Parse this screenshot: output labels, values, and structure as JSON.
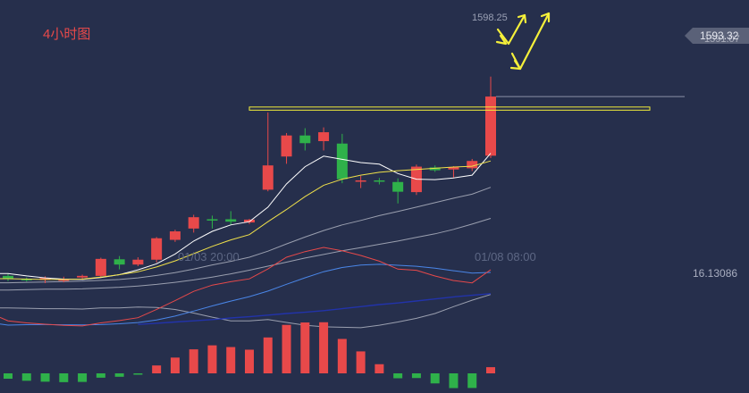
{
  "chart_data": {
    "type": "candlestick",
    "timeframe_label": "4小时图",
    "background": "#262f4c",
    "colors": {
      "up": "#e8494a",
      "down": "#2fb14a",
      "ma_white": "#ffffff",
      "ma_yellow": "#f0e14a",
      "ma_gray": "#b8bcc8",
      "ma_blue": "#2233aa",
      "dif": "#e8494a",
      "dea": "#4a86e8",
      "marker": "#f5f03a"
    },
    "price_axis": {
      "ylim": [
        1528,
        1600
      ],
      "current_price": "1593.32",
      "secondary_price": "1591.07",
      "high_label": "1598.25"
    },
    "x_ticks": [
      "01/03 20:00",
      "01/08 08:00"
    ],
    "macd_value_label": "16.13086",
    "candles": [
      {
        "o": 1549.0,
        "h": 1549.6,
        "l": 1547.7,
        "c": 1548.3
      },
      {
        "o": 1548.3,
        "h": 1548.6,
        "l": 1547.6,
        "c": 1547.9
      },
      {
        "o": 1548.0,
        "h": 1548.9,
        "l": 1547.2,
        "c": 1548.5
      },
      {
        "o": 1547.9,
        "h": 1548.8,
        "l": 1547.4,
        "c": 1548.1
      },
      {
        "o": 1548.6,
        "h": 1549.3,
        "l": 1548.2,
        "c": 1549.0
      },
      {
        "o": 1549.0,
        "h": 1553.5,
        "l": 1548.7,
        "c": 1553.2
      },
      {
        "o": 1553.1,
        "h": 1553.9,
        "l": 1550.6,
        "c": 1551.8
      },
      {
        "o": 1551.8,
        "h": 1553.6,
        "l": 1551.4,
        "c": 1553.0
      },
      {
        "o": 1553.0,
        "h": 1558.6,
        "l": 1552.3,
        "c": 1558.3
      },
      {
        "o": 1557.9,
        "h": 1560.4,
        "l": 1557.4,
        "c": 1560.0
      },
      {
        "o": 1560.7,
        "h": 1564.1,
        "l": 1559.7,
        "c": 1563.5
      },
      {
        "o": 1563.0,
        "h": 1563.9,
        "l": 1560.7,
        "c": 1562.7
      },
      {
        "o": 1563.0,
        "h": 1565.0,
        "l": 1561.6,
        "c": 1562.4
      },
      {
        "o": 1562.2,
        "h": 1563.1,
        "l": 1561.8,
        "c": 1562.9
      },
      {
        "o": 1570.3,
        "h": 1589.4,
        "l": 1569.9,
        "c": 1576.3
      },
      {
        "o": 1578.5,
        "h": 1584.3,
        "l": 1576.7,
        "c": 1583.7
      },
      {
        "o": 1583.7,
        "h": 1585.5,
        "l": 1580.0,
        "c": 1581.8
      },
      {
        "o": 1582.3,
        "h": 1585.7,
        "l": 1580.0,
        "c": 1584.5
      },
      {
        "o": 1581.7,
        "h": 1584.1,
        "l": 1571.9,
        "c": 1572.9
      },
      {
        "o": 1572.5,
        "h": 1573.7,
        "l": 1570.7,
        "c": 1572.6
      },
      {
        "o": 1572.6,
        "h": 1573.2,
        "l": 1571.6,
        "c": 1572.3
      },
      {
        "o": 1572.2,
        "h": 1573.1,
        "l": 1566.9,
        "c": 1569.8
      },
      {
        "o": 1569.7,
        "h": 1576.5,
        "l": 1569.0,
        "c": 1576.0
      },
      {
        "o": 1575.8,
        "h": 1576.3,
        "l": 1574.7,
        "c": 1575.1
      },
      {
        "o": 1575.3,
        "h": 1576.1,
        "l": 1573.3,
        "c": 1575.9
      },
      {
        "o": 1575.6,
        "h": 1577.9,
        "l": 1574.9,
        "c": 1577.4
      },
      {
        "o": 1578.7,
        "h": 1598.25,
        "l": 1578.1,
        "c": 1593.32
      }
    ],
    "moving_averages": [
      {
        "color": "white",
        "values": [
          1549.6,
          1549.0,
          1548.5,
          1548.2,
          1548.1,
          1548.6,
          1549.3,
          1550.5,
          1552.0,
          1554.4,
          1557.6,
          1560.0,
          1561.6,
          1562.4,
          1566.0,
          1571.7,
          1576.0,
          1578.6,
          1577.8,
          1577.0,
          1576.6,
          1574.3,
          1572.9,
          1572.8,
          1573.2,
          1573.9,
          1579.3
        ]
      },
      {
        "color": "yellow",
        "values": [
          1548.3,
          1548.2,
          1548.1,
          1548.1,
          1548.2,
          1548.7,
          1549.3,
          1550.0,
          1551.2,
          1552.7,
          1554.5,
          1556.3,
          1557.9,
          1559.2,
          1562.4,
          1565.4,
          1568.6,
          1571.4,
          1572.9,
          1573.9,
          1574.6,
          1575.0,
          1575.3,
          1575.6,
          1575.9,
          1576.1,
          1577.4
        ]
      },
      {
        "color": "gray",
        "values": [
          1547.3,
          1547.4,
          1547.5,
          1547.6,
          1547.7,
          1547.9,
          1548.1,
          1548.5,
          1549.1,
          1549.8,
          1550.7,
          1551.7,
          1552.6,
          1553.6,
          1555.1,
          1556.9,
          1558.6,
          1560.2,
          1561.6,
          1562.7,
          1563.9,
          1564.9,
          1566.0,
          1567.1,
          1568.2,
          1569.2,
          1570.9
        ]
      },
      {
        "color": "gray",
        "values": [
          1545.5,
          1545.6,
          1545.7,
          1545.7,
          1545.8,
          1546.0,
          1546.2,
          1546.5,
          1546.9,
          1547.4,
          1548.0,
          1548.7,
          1549.5,
          1550.4,
          1551.4,
          1552.4,
          1553.4,
          1554.3,
          1555.2,
          1556.0,
          1556.8,
          1557.6,
          1558.5,
          1559.4,
          1560.5,
          1561.8,
          1563.2
        ]
      },
      {
        "color": "gray",
        "values": [
          1541.1,
          1541.0,
          1540.9,
          1540.9,
          1540.8,
          1541.1,
          1541.1,
          1541.3,
          1541.2,
          1540.7,
          1539.8,
          1538.8,
          1537.9,
          1537.9,
          1538.2,
          1537.5,
          1536.8,
          1536.4,
          1536.3,
          1536.2,
          1536.8,
          1537.6,
          1538.5,
          1539.7,
          1541.4,
          1543.0,
          1544.4
        ]
      },
      {
        "color": "blue",
        "values": [
          null,
          null,
          null,
          null,
          null,
          null,
          null,
          1537.0,
          1537.3,
          1537.6,
          1537.9,
          1538.2,
          1538.6,
          1538.9,
          1539.3,
          1539.7,
          1540.0,
          1540.4,
          1540.9,
          1541.4,
          1541.9,
          1542.3,
          1542.8,
          1543.3,
          1543.8,
          1544.2,
          1544.6
        ]
      }
    ],
    "macd": {
      "hist": [
        -4.7,
        -6.5,
        -7.3,
        -7.7,
        -7.5,
        -3.8,
        -3.0,
        -1.0,
        6.9,
        13.8,
        21.0,
        24.5,
        23.0,
        20.7,
        31.4,
        42.4,
        44.5,
        44.7,
        30.1,
        19.2,
        8.0,
        -4.3,
        -4.1,
        -8.8,
        -12.9,
        -12.8,
        5.4
      ],
      "dif": [
        10.8,
        9.0,
        7.8,
        6.9,
        6.3,
        9.0,
        11.0,
        13.5,
        20.8,
        28.4,
        36.6,
        42.0,
        45.0,
        47.5,
        56.2,
        66.4,
        71.3,
        75.0,
        72.0,
        68.0,
        63.0,
        56.0,
        55.0,
        50.0,
        46.0,
        44.0,
        55.5
      ]
    }
  },
  "annotations": {
    "resistance_line_price": 1590.4
  }
}
